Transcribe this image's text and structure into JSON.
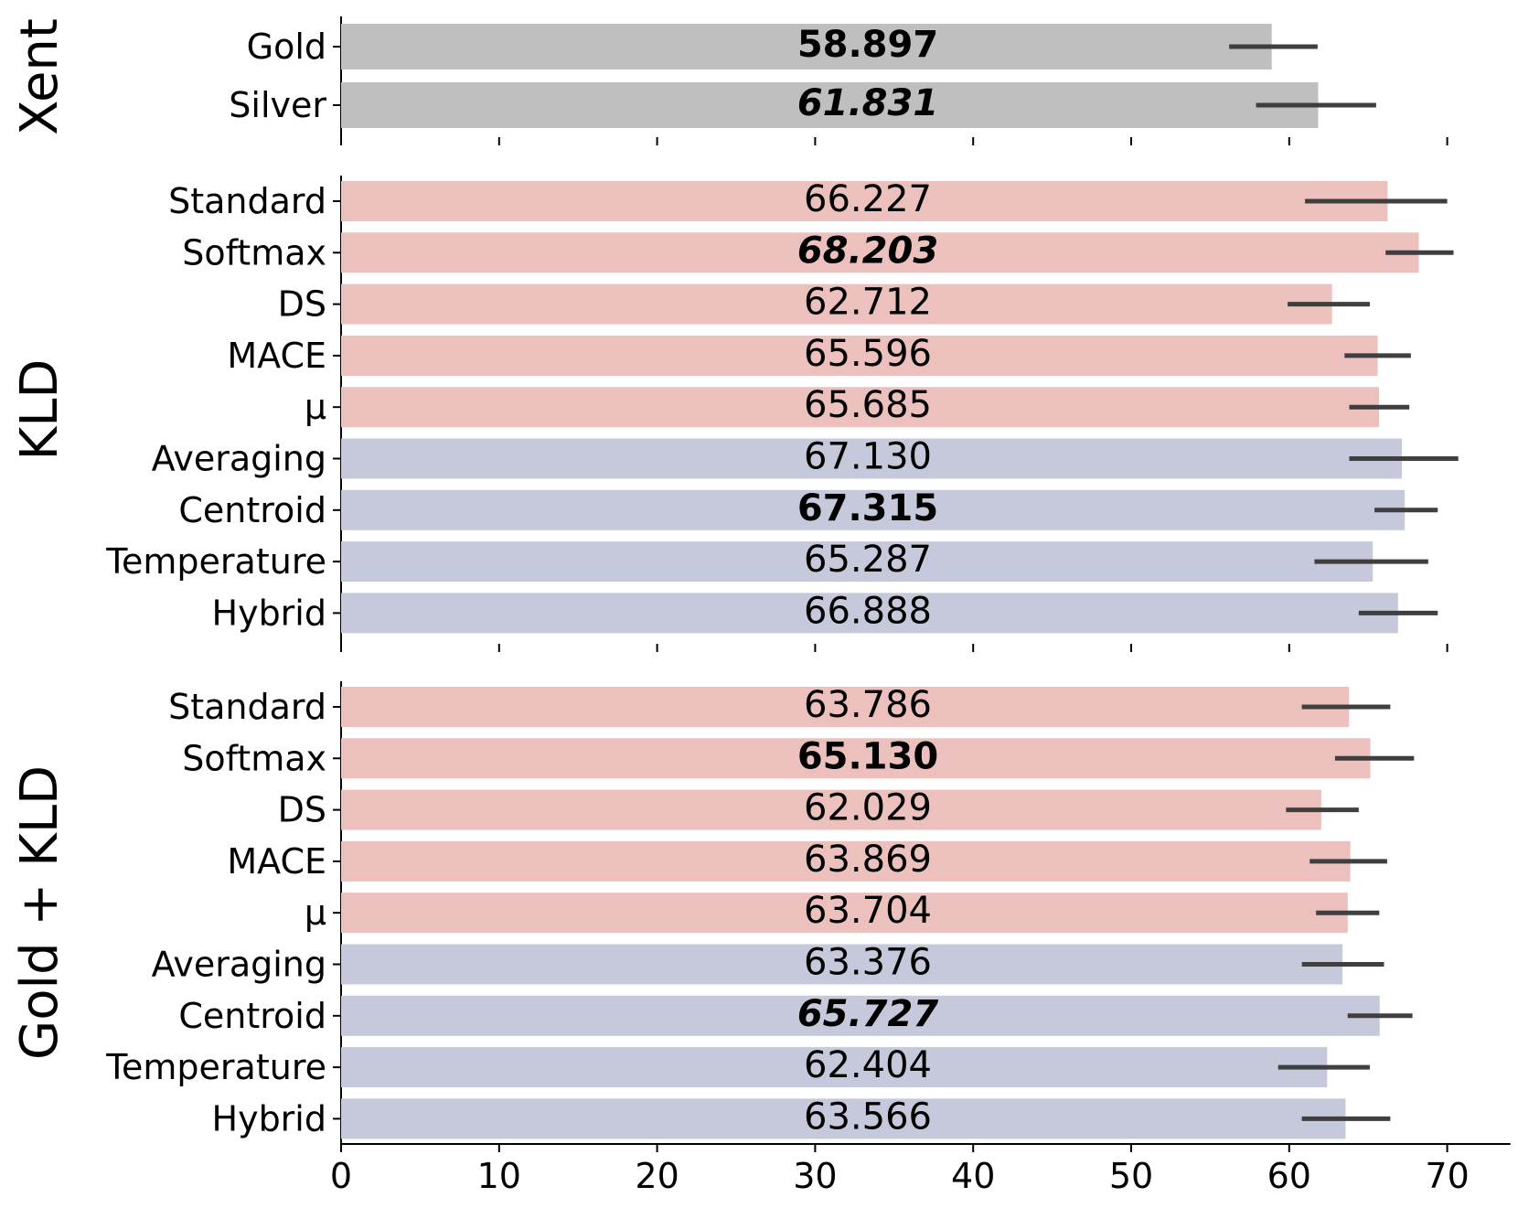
{
  "chart_data": {
    "type": "bar",
    "orientation": "horizontal",
    "xlim": [
      0,
      74
    ],
    "x_ticks": [
      0,
      10,
      20,
      30,
      40,
      50,
      60,
      70
    ],
    "colors": {
      "gray": "#bfbfbf",
      "pink": "#ecc0bd",
      "lavender": "#c6c9dc",
      "error_bar": "#3f3f3f"
    },
    "panels": [
      {
        "title": "Xent",
        "bars": [
          {
            "label": "Gold",
            "value": 58.897,
            "value_label": "58.897",
            "err_low": 56.2,
            "err_high": 61.8,
            "color": "gray",
            "bold": true,
            "italic": false
          },
          {
            "label": "Silver",
            "value": 61.831,
            "value_label": "61.831",
            "err_low": 57.9,
            "err_high": 65.5,
            "color": "gray",
            "bold": true,
            "italic": true
          }
        ]
      },
      {
        "title": "KLD",
        "bars": [
          {
            "label": "Standard",
            "value": 66.227,
            "value_label": "66.227",
            "err_low": 61.0,
            "err_high": 70.0,
            "color": "pink",
            "bold": false,
            "italic": false
          },
          {
            "label": "Softmax",
            "value": 68.203,
            "value_label": "68.203",
            "err_low": 66.1,
            "err_high": 70.4,
            "color": "pink",
            "bold": true,
            "italic": true
          },
          {
            "label": "DS",
            "value": 62.712,
            "value_label": "62.712",
            "err_low": 59.9,
            "err_high": 65.1,
            "color": "pink",
            "bold": false,
            "italic": false
          },
          {
            "label": "MACE",
            "value": 65.596,
            "value_label": "65.596",
            "err_low": 63.5,
            "err_high": 67.7,
            "color": "pink",
            "bold": false,
            "italic": false
          },
          {
            "label": "μ",
            "value": 65.685,
            "value_label": "65.685",
            "err_low": 63.8,
            "err_high": 67.6,
            "color": "pink",
            "bold": false,
            "italic": false
          },
          {
            "label": "Averaging",
            "value": 67.13,
            "value_label": "67.130",
            "err_low": 63.8,
            "err_high": 70.7,
            "color": "lavender",
            "bold": false,
            "italic": false
          },
          {
            "label": "Centroid",
            "value": 67.315,
            "value_label": "67.315",
            "err_low": 65.4,
            "err_high": 69.4,
            "color": "lavender",
            "bold": true,
            "italic": false
          },
          {
            "label": "Temperature",
            "value": 65.287,
            "value_label": "65.287",
            "err_low": 61.6,
            "err_high": 68.8,
            "color": "lavender",
            "bold": false,
            "italic": false
          },
          {
            "label": "Hybrid",
            "value": 66.888,
            "value_label": "66.888",
            "err_low": 64.4,
            "err_high": 69.4,
            "color": "lavender",
            "bold": false,
            "italic": false
          }
        ]
      },
      {
        "title": "Gold + KLD",
        "bars": [
          {
            "label": "Standard",
            "value": 63.786,
            "value_label": "63.786",
            "err_low": 60.8,
            "err_high": 66.4,
            "color": "pink",
            "bold": false,
            "italic": false
          },
          {
            "label": "Softmax",
            "value": 65.13,
            "value_label": "65.130",
            "err_low": 62.9,
            "err_high": 67.9,
            "color": "pink",
            "bold": true,
            "italic": false
          },
          {
            "label": "DS",
            "value": 62.029,
            "value_label": "62.029",
            "err_low": 59.8,
            "err_high": 64.4,
            "color": "pink",
            "bold": false,
            "italic": false
          },
          {
            "label": "MACE",
            "value": 63.869,
            "value_label": "63.869",
            "err_low": 61.3,
            "err_high": 66.2,
            "color": "pink",
            "bold": false,
            "italic": false
          },
          {
            "label": "μ",
            "value": 63.704,
            "value_label": "63.704",
            "err_low": 61.7,
            "err_high": 65.7,
            "color": "pink",
            "bold": false,
            "italic": false
          },
          {
            "label": "Averaging",
            "value": 63.376,
            "value_label": "63.376",
            "err_low": 60.8,
            "err_high": 66.0,
            "color": "lavender",
            "bold": false,
            "italic": false
          },
          {
            "label": "Centroid",
            "value": 65.727,
            "value_label": "65.727",
            "err_low": 63.7,
            "err_high": 67.8,
            "color": "lavender",
            "bold": true,
            "italic": true
          },
          {
            "label": "Temperature",
            "value": 62.404,
            "value_label": "62.404",
            "err_low": 59.3,
            "err_high": 65.1,
            "color": "lavender",
            "bold": false,
            "italic": false
          },
          {
            "label": "Hybrid",
            "value": 63.566,
            "value_label": "63.566",
            "err_low": 60.8,
            "err_high": 66.4,
            "color": "lavender",
            "bold": false,
            "italic": false
          }
        ]
      }
    ]
  }
}
